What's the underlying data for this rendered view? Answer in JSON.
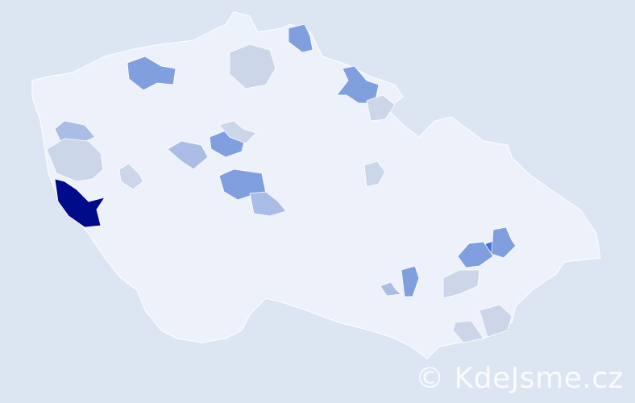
{
  "watermark": "© KdeJsme.cz",
  "colors": {
    "background": "#dce6f2",
    "base": "#edf1f9",
    "border": "#ffffff",
    "lightest": "#cbd6e8",
    "light": "#a9bde6",
    "medium": "#7f9fdf",
    "strong": "#4272d6",
    "max": "#000b8c"
  },
  "regions": [
    {
      "level": "max"
    },
    {
      "level": "strong"
    },
    {
      "level": "medium"
    },
    {
      "level": "medium"
    },
    {
      "level": "medium"
    },
    {
      "level": "medium"
    },
    {
      "level": "medium"
    },
    {
      "level": "medium"
    },
    {
      "level": "medium"
    },
    {
      "level": "medium"
    },
    {
      "level": "light"
    },
    {
      "level": "light"
    },
    {
      "level": "light"
    },
    {
      "level": "light"
    },
    {
      "level": "lightest"
    },
    {
      "level": "lightest"
    },
    {
      "level": "lightest"
    },
    {
      "level": "lightest"
    },
    {
      "level": "lightest"
    },
    {
      "level": "lightest"
    },
    {
      "level": "lightest"
    },
    {
      "level": "lightest"
    },
    {
      "level": "lightest"
    }
  ]
}
